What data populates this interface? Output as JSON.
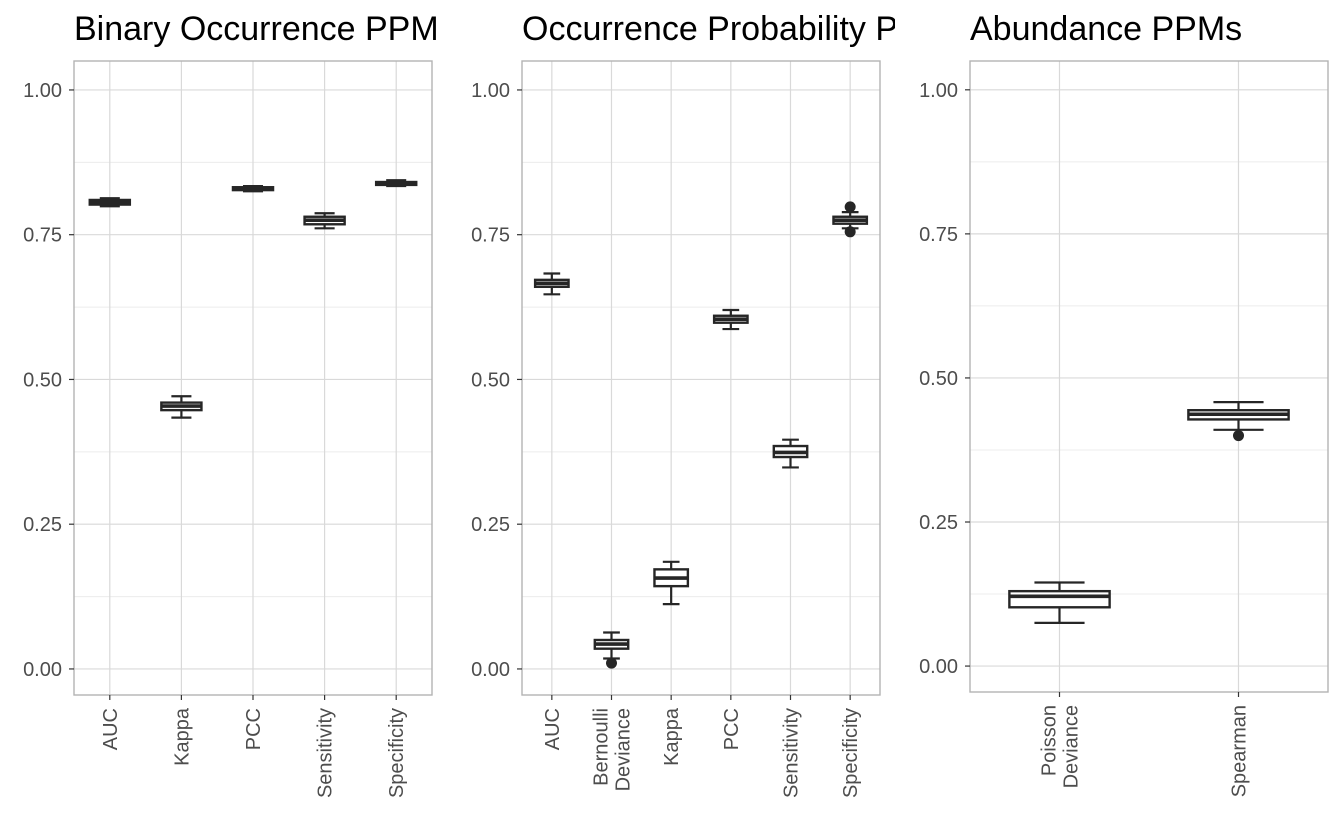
{
  "figure": {
    "background": "#ffffff",
    "panel_border_color": "#b3b3b3",
    "grid_major_color": "#d9d9d9",
    "grid_minor_color": "#ececec",
    "box_color": "#262626",
    "box_fill": "#ffffff",
    "text_color": "#4d4d4d"
  },
  "chart_data": [
    {
      "type": "box",
      "title": "Binary Occurrence PPM",
      "xlabel": "",
      "ylabel": "",
      "ylim": [
        -0.045,
        1.05
      ],
      "yticks": [
        0.0,
        0.25,
        0.5,
        0.75,
        1.0
      ],
      "ytick_labels": [
        "0.00",
        "0.25",
        "0.50",
        "0.75",
        "1.00"
      ],
      "grid": true,
      "categories": [
        {
          "lines": [
            "AUC"
          ],
          "min": 0.799,
          "q1": 0.802,
          "median": 0.806,
          "q3": 0.81,
          "max": 0.813,
          "outliers": []
        },
        {
          "lines": [
            "Kappa"
          ],
          "min": 0.434,
          "q1": 0.447,
          "median": 0.454,
          "q3": 0.46,
          "max": 0.471,
          "outliers": []
        },
        {
          "lines": [
            "PCC"
          ],
          "min": 0.825,
          "q1": 0.827,
          "median": 0.829,
          "q3": 0.832,
          "max": 0.834,
          "outliers": []
        },
        {
          "lines": [
            "Sensitivity"
          ],
          "min": 0.761,
          "q1": 0.768,
          "median": 0.775,
          "q3": 0.781,
          "max": 0.787,
          "outliers": []
        },
        {
          "lines": [
            "Specificity"
          ],
          "min": 0.834,
          "q1": 0.836,
          "median": 0.838,
          "q3": 0.841,
          "max": 0.844,
          "outliers": []
        }
      ]
    },
    {
      "type": "box",
      "title": "Occurrence Probability P",
      "xlabel": "",
      "ylabel": "",
      "ylim": [
        -0.045,
        1.05
      ],
      "yticks": [
        0.0,
        0.25,
        0.5,
        0.75,
        1.0
      ],
      "ytick_labels": [
        "0.00",
        "0.25",
        "0.50",
        "0.75",
        "1.00"
      ],
      "grid": true,
      "categories": [
        {
          "lines": [
            "AUC"
          ],
          "min": 0.647,
          "q1": 0.66,
          "median": 0.666,
          "q3": 0.672,
          "max": 0.683,
          "outliers": []
        },
        {
          "lines": [
            "Bernoulli",
            "Deviance"
          ],
          "min": 0.018,
          "q1": 0.035,
          "median": 0.043,
          "q3": 0.05,
          "max": 0.063,
          "outliers": [
            0.01
          ]
        },
        {
          "lines": [
            "Kappa"
          ],
          "min": 0.112,
          "q1": 0.143,
          "median": 0.157,
          "q3": 0.172,
          "max": 0.185,
          "outliers": []
        },
        {
          "lines": [
            "PCC"
          ],
          "min": 0.587,
          "q1": 0.598,
          "median": 0.604,
          "q3": 0.61,
          "max": 0.62,
          "outliers": []
        },
        {
          "lines": [
            "Sensitivity"
          ],
          "min": 0.348,
          "q1": 0.366,
          "median": 0.374,
          "q3": 0.385,
          "max": 0.396,
          "outliers": []
        },
        {
          "lines": [
            "Specificity"
          ],
          "min": 0.761,
          "q1": 0.769,
          "median": 0.775,
          "q3": 0.781,
          "max": 0.789,
          "outliers": [
            0.755,
            0.798
          ]
        }
      ]
    },
    {
      "type": "box",
      "title": "Abundance PPMs",
      "xlabel": "",
      "ylabel": "",
      "ylim": [
        -0.045,
        1.05
      ],
      "yticks": [
        0.0,
        0.25,
        0.5,
        0.75,
        1.0
      ],
      "ytick_labels": [
        "0.00",
        "0.25",
        "0.50",
        "0.75",
        "1.00"
      ],
      "grid": true,
      "categories": [
        {
          "lines": [
            "Poisson",
            "Deviance"
          ],
          "min": 0.075,
          "q1": 0.102,
          "median": 0.121,
          "q3": 0.13,
          "max": 0.145,
          "outliers": []
        },
        {
          "lines": [
            "Spearman"
          ],
          "min": 0.41,
          "q1": 0.428,
          "median": 0.437,
          "q3": 0.444,
          "max": 0.458,
          "outliers": [
            0.4
          ]
        }
      ]
    }
  ]
}
